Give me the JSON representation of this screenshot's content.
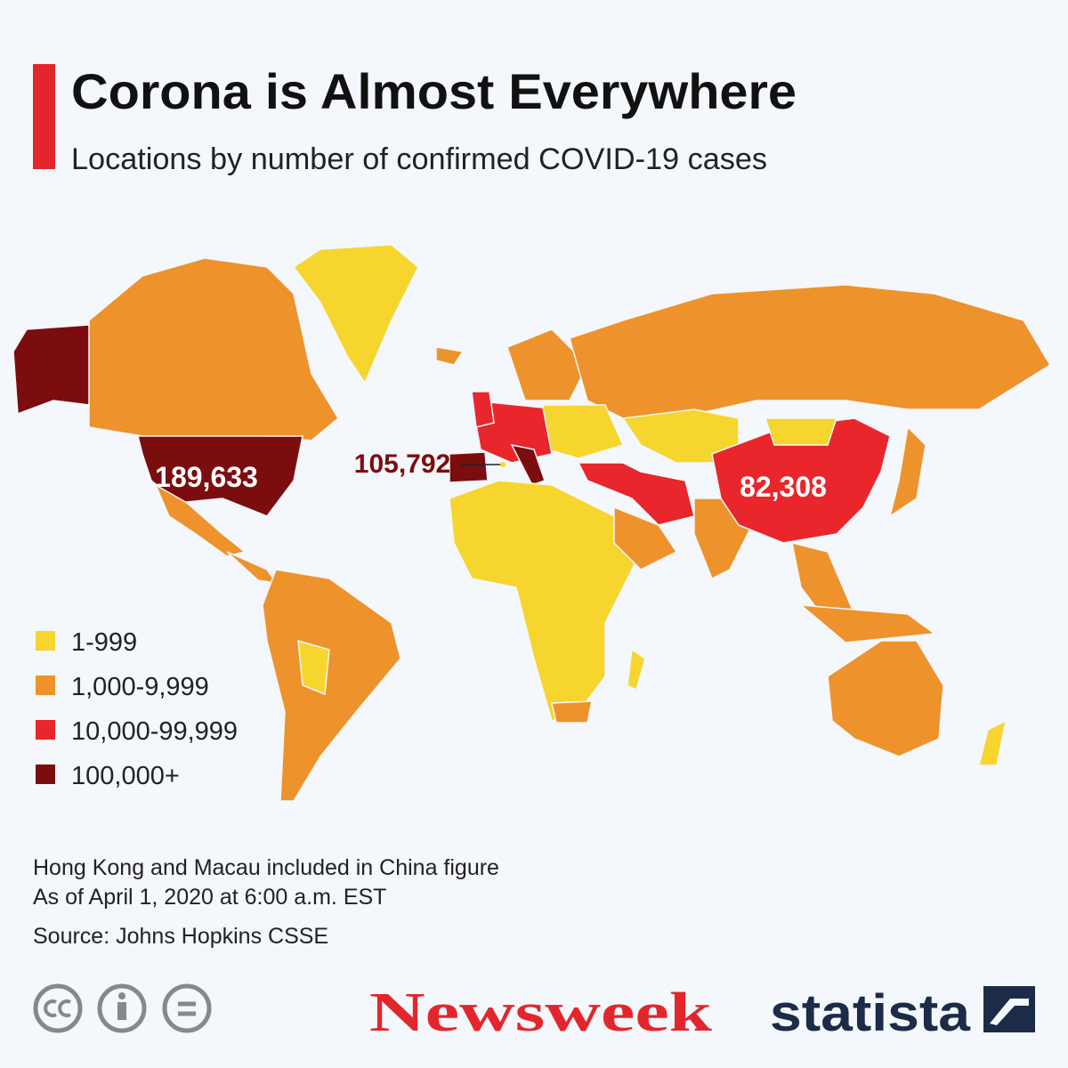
{
  "header": {
    "title": "Corona is Almost Everywhere",
    "subtitle": "Locations by number of confirmed COVID-19 cases"
  },
  "legend": {
    "items": [
      {
        "label": "1-999",
        "color": "#f6d52e"
      },
      {
        "label": "1,000-9,999",
        "color": "#ee922b"
      },
      {
        "label": "10,000-99,999",
        "color": "#e8262b"
      },
      {
        "label": "100,000+",
        "color": "#7b0d0e"
      }
    ]
  },
  "annotations": [
    {
      "text": "189,633",
      "color": "#ffffff"
    },
    {
      "text": "105,792",
      "color": "#7b0d0e"
    },
    {
      "text": "82,308",
      "color": "#ffffff"
    }
  ],
  "notes": [
    "Hong Kong and Macau included in China figure",
    "As of April 1, 2020 at 6:00 a.m. EST",
    "Source: Johns Hopkins CSSE"
  ],
  "footer": {
    "publisher": "Newsweek",
    "brand": "statista"
  }
}
